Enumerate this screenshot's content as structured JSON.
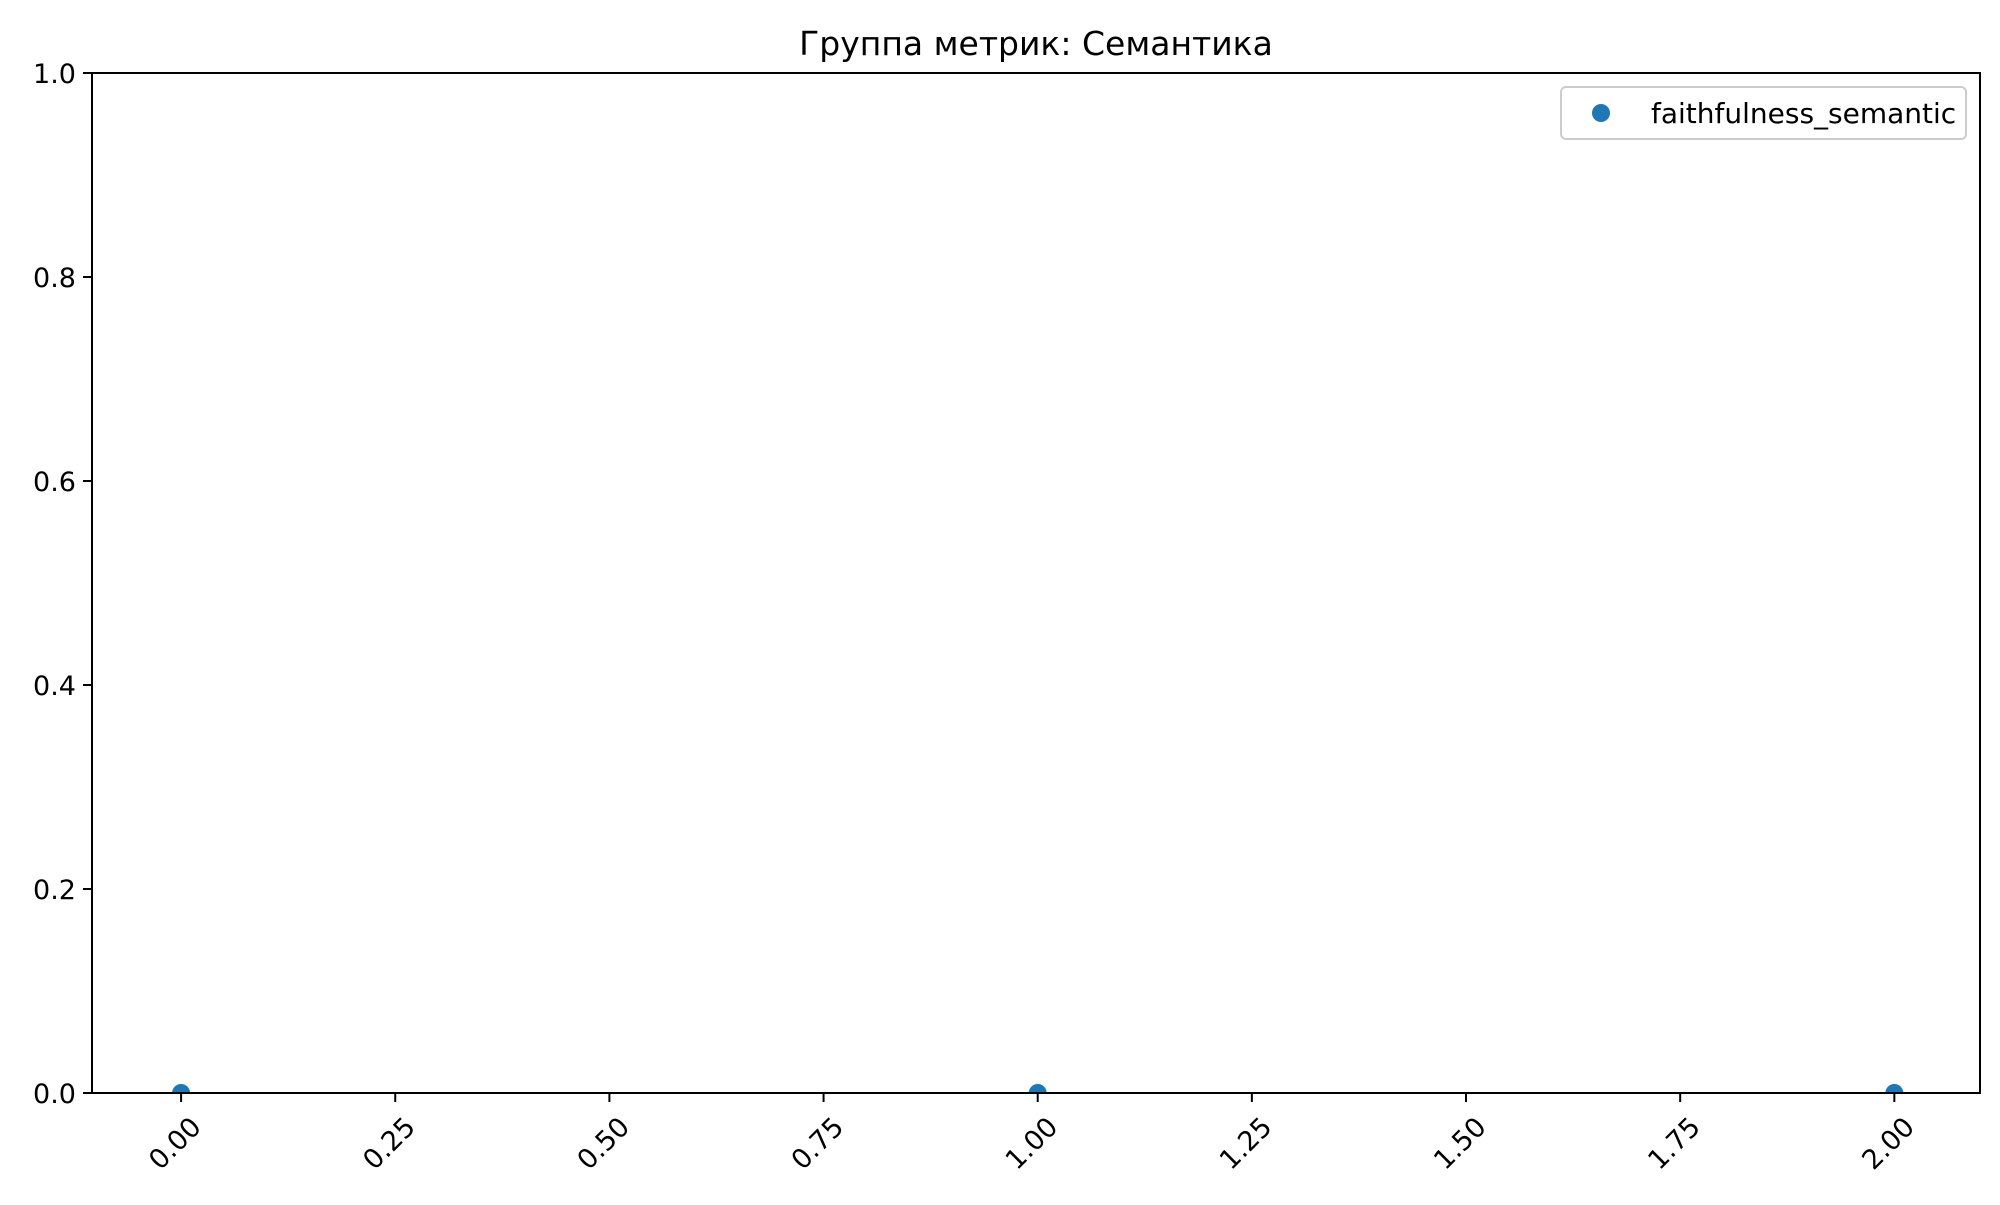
{
  "chart_data": {
    "type": "scatter",
    "title": "Группа метрик: Семантика",
    "xlabel": "",
    "ylabel": "",
    "xlim": [
      -0.104,
      2.1
    ],
    "ylim": [
      0.0,
      1.0
    ],
    "xticks": [
      0.0,
      0.25,
      0.5,
      0.75,
      1.0,
      1.25,
      1.5,
      1.75,
      2.0
    ],
    "xtick_labels": [
      "0.00",
      "0.25",
      "0.50",
      "0.75",
      "1.00",
      "1.25",
      "1.50",
      "1.75",
      "2.00"
    ],
    "yticks": [
      0.0,
      0.2,
      0.4,
      0.6,
      0.8,
      1.0
    ],
    "ytick_labels": [
      "0.0",
      "0.2",
      "0.4",
      "0.6",
      "0.8",
      "1.0"
    ],
    "xtick_rotation_deg": 45,
    "grid": false,
    "legend_position": "top-right",
    "series": [
      {
        "name": "faithfulness_semantic",
        "color": "#1f77b4",
        "x": [
          0,
          1,
          2
        ],
        "y": [
          0.0,
          0.0,
          0.0
        ]
      }
    ]
  }
}
